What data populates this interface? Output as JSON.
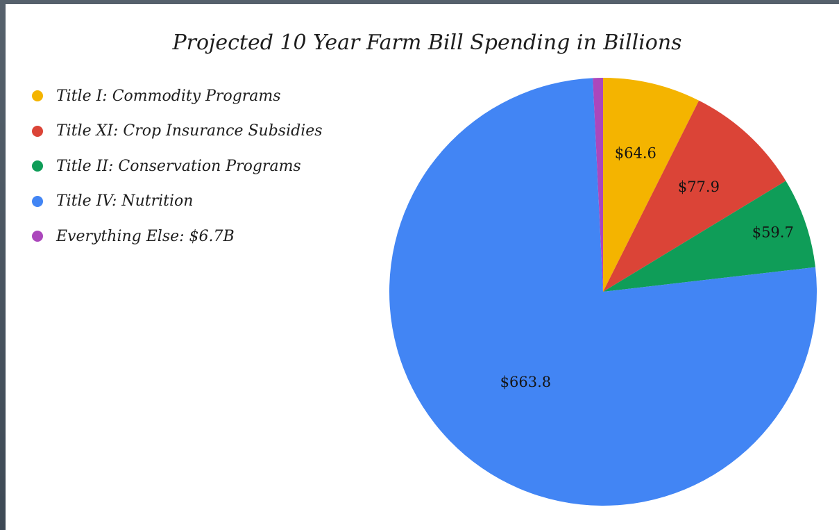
{
  "chart_data": {
    "type": "pie",
    "title": "Projected 10 Year Farm Bill Spending in Billions",
    "legend_position": "top-left",
    "slices": [
      {
        "name": "Title I: Commodity Programs",
        "value": 64.6,
        "label": "$64.6",
        "color": "#f4b400"
      },
      {
        "name": "Title XI: Crop Insurance Subsidies",
        "value": 77.9,
        "label": "$77.9",
        "color": "#db4437"
      },
      {
        "name": "Title II: Conservation Programs",
        "value": 59.7,
        "label": "$59.7",
        "color": "#0f9d58"
      },
      {
        "name": "Title IV: Nutrition",
        "value": 663.8,
        "label": "$663.8",
        "color": "#4285f4"
      },
      {
        "name": "Everything Else: $6.7B",
        "value": 6.7,
        "label": "",
        "color": "#ab47bc"
      }
    ]
  }
}
